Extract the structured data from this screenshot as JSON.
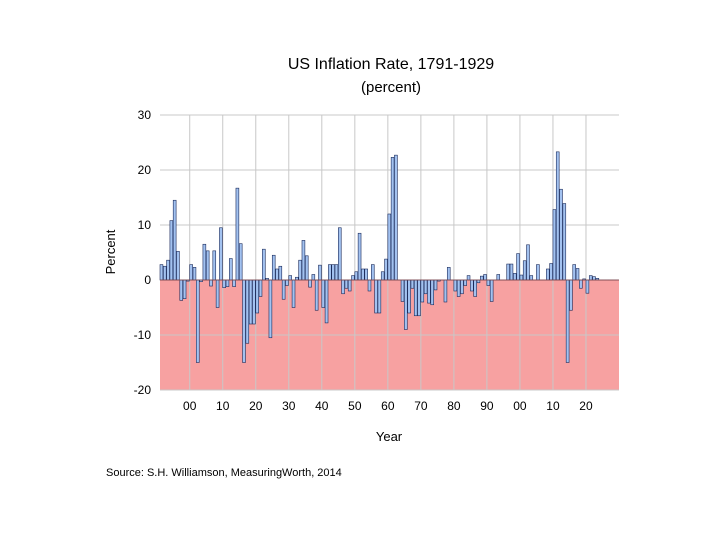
{
  "chart_data": {
    "type": "bar",
    "title": "US Inflation Rate, 1791-1929",
    "subtitle": "(percent)",
    "xlabel": "Year",
    "ylabel": "Percent",
    "source": "Source: S.H. Williamson, MeasuringWorth, 2014",
    "ylim": [
      -20,
      30
    ],
    "yticks": [
      30,
      20,
      10,
      0,
      -10,
      -20
    ],
    "xlim": [
      1791,
      1930
    ],
    "xticks": [
      {
        "year": 1800,
        "label": "00"
      },
      {
        "year": 1810,
        "label": "10"
      },
      {
        "year": 1820,
        "label": "20"
      },
      {
        "year": 1830,
        "label": "30"
      },
      {
        "year": 1840,
        "label": "40"
      },
      {
        "year": 1850,
        "label": "50"
      },
      {
        "year": 1860,
        "label": "60"
      },
      {
        "year": 1870,
        "label": "70"
      },
      {
        "year": 1880,
        "label": "80"
      },
      {
        "year": 1890,
        "label": "90"
      },
      {
        "year": 1900,
        "label": "00"
      },
      {
        "year": 1910,
        "label": "10"
      },
      {
        "year": 1920,
        "label": "20"
      }
    ],
    "colors": {
      "bar": "#a3c2f0",
      "bar_edge": "#1a2a5a",
      "negative_region": "#f7a1a1",
      "grid": "#c8c8c8"
    },
    "start_year": 1791,
    "values": [
      2.8,
      2.5,
      3.6,
      10.8,
      14.5,
      5.2,
      -3.7,
      -3.4,
      -0.2,
      2.8,
      2.3,
      -15.0,
      -0.3,
      6.5,
      5.3,
      -1.1,
      5.3,
      -5.0,
      9.5,
      -1.4,
      -1.2,
      3.9,
      -1.2,
      16.7,
      6.6,
      -15.0,
      -11.5,
      -8.0,
      -8.0,
      -6.0,
      -3.0,
      5.6,
      0.3,
      -10.5,
      4.5,
      2.0,
      2.5,
      -3.5,
      -1.0,
      0.8,
      -5.0,
      0.5,
      3.6,
      7.2,
      4.4,
      -1.3,
      1.0,
      -5.5,
      2.7,
      -5.0,
      -7.8,
      2.8,
      2.8,
      2.8,
      9.5,
      -2.5,
      -1.5,
      -2.0,
      0.8,
      1.5,
      8.5,
      2.0,
      2.0,
      -2.0,
      2.8,
      -6.0,
      -6.0,
      1.5,
      3.8,
      12.0,
      22.3,
      22.7,
      0.0,
      -3.9,
      -9.0,
      -6.0,
      -1.5,
      -6.5,
      -6.5,
      -4.0,
      -2.5,
      -4.2,
      -4.5,
      -1.8,
      -0.2,
      0.0,
      -4.0,
      2.3,
      0.0,
      -2.0,
      -3.0,
      -2.5,
      -1.0,
      0.8,
      -2.0,
      -3.0,
      -0.5,
      0.7,
      1.0,
      -1.0,
      -3.9,
      0.0,
      1.0,
      0.0,
      0.0,
      2.9,
      2.9,
      1.2,
      4.8,
      0.9,
      3.5,
      6.4,
      0.8,
      0.0,
      2.8,
      0.0,
      0.0,
      2.0,
      3.0,
      12.8,
      23.3,
      16.5,
      13.9,
      -15.0,
      -5.5,
      2.8,
      2.1,
      -1.5,
      0.2,
      -2.4,
      0.8,
      0.6,
      0.3,
      0.0,
      0.0,
      0.0,
      0.0,
      0.0,
      0.0
    ]
  }
}
